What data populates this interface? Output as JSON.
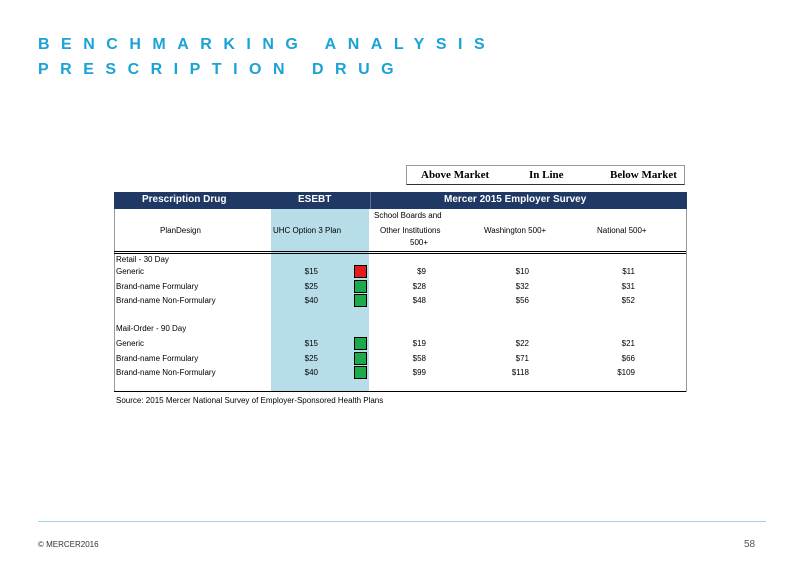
{
  "title": {
    "line1": "BENCHMARKING ANALYSIS",
    "line2": "PRESCRIPTION DRUG"
  },
  "legend": {
    "above": "Above Market",
    "inline": "In Line",
    "below": "Below Market"
  },
  "table_header": {
    "left": "Prescription Drug",
    "esebt": "ESEBT",
    "right": "Mercer 2015 Employer Survey"
  },
  "columns": {
    "plan_design": "PlanDesign",
    "uhc": "UHC Option 3 Plan",
    "school_line1": "School Boards and",
    "school_line2": "Other Institutions",
    "school_line3": "500+",
    "washington": "Washington 500+",
    "national": "National 500+"
  },
  "sections": [
    {
      "label": "Retail - 30 Day",
      "rows": [
        {
          "label": "Generic",
          "uhc": "$15",
          "status": "above",
          "school": "$9",
          "washington": "$10",
          "national": "$11"
        },
        {
          "label": "Brand-name Formulary",
          "uhc": "$25",
          "status": "below",
          "school": "$28",
          "washington": "$32",
          "national": "$31"
        },
        {
          "label": "Brand-name Non-Formulary",
          "uhc": "$40",
          "status": "below",
          "school": "$48",
          "washington": "$56",
          "national": "$52"
        }
      ]
    },
    {
      "label": "Mail-Order - 90 Day",
      "rows": [
        {
          "label": "Generic",
          "uhc": "$15",
          "status": "below",
          "school": "$19",
          "washington": "$22",
          "national": "$21"
        },
        {
          "label": "Brand-name Formulary",
          "uhc": "$25",
          "status": "below",
          "school": "$58",
          "washington": "$71",
          "national": "$66"
        },
        {
          "label": "Brand-name Non-Formulary",
          "uhc": "$40",
          "status": "below",
          "school": "$99",
          "washington": "$118",
          "national": "$109"
        }
      ]
    }
  ],
  "status_colors": {
    "above": "#e31b1b",
    "below": "#1daa4a"
  },
  "source": "Source: 2015 Mercer National Survey of Employer-Sponsored Health Plans",
  "footer": {
    "copyright": "© MERCER2016",
    "page": "58"
  }
}
